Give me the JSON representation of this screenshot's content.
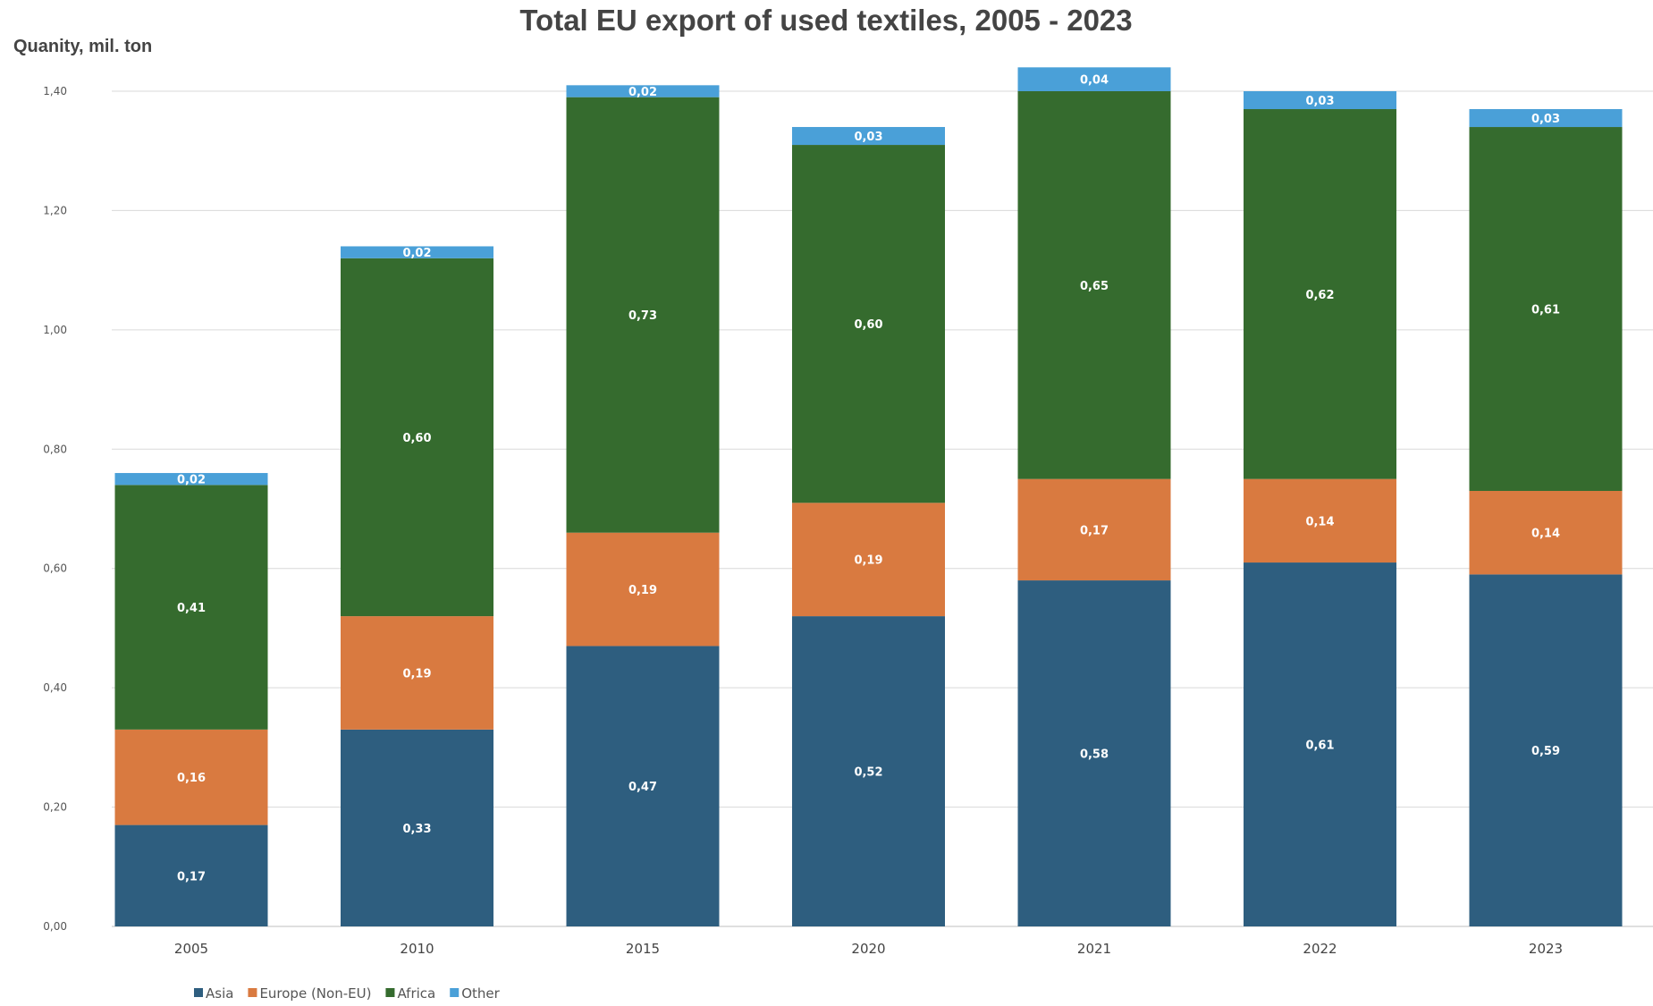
{
  "chart_data": {
    "type": "bar",
    "stacked": true,
    "title": "Total EU export of used textiles, 2005 - 2023",
    "ylabel": "Quanity, mil. ton",
    "xlabel": "",
    "ylim": [
      0,
      1.4
    ],
    "yticks": [
      "0,00",
      "0,20",
      "0,40",
      "0,60",
      "0,80",
      "1,00",
      "1,20",
      "1,40"
    ],
    "categories": [
      "2005",
      "2010",
      "2015",
      "2020",
      "2021",
      "2022",
      "2023"
    ],
    "grid": true,
    "legend_position": "bottom-left",
    "series": [
      {
        "name": "Asia",
        "color": "#2e5e7f",
        "values": [
          0.17,
          0.33,
          0.47,
          0.52,
          0.58,
          0.61,
          0.59
        ],
        "labels": [
          "0,17",
          "0,33",
          "0,47",
          "0,52",
          "0,58",
          "0,61",
          "0,59"
        ]
      },
      {
        "name": "Europe (Non-EU)",
        "color": "#d97a40",
        "values": [
          0.16,
          0.19,
          0.19,
          0.19,
          0.17,
          0.14,
          0.14
        ],
        "labels": [
          "0,16",
          "0,19",
          "0,19",
          "0,19",
          "0,17",
          "0,14",
          "0,14"
        ]
      },
      {
        "name": "Africa",
        "color": "#356b2e",
        "values": [
          0.41,
          0.6,
          0.73,
          0.6,
          0.65,
          0.62,
          0.61
        ],
        "labels": [
          "0,41",
          "0,60",
          "0,73",
          "0,60",
          "0,65",
          "0,62",
          "0,61"
        ]
      },
      {
        "name": "Other",
        "color": "#4aa0d8",
        "values": [
          0.02,
          0.02,
          0.02,
          0.03,
          0.04,
          0.03,
          0.03
        ],
        "labels": [
          "0,02",
          "0,02",
          "0,02",
          "0,03",
          "0,04",
          "0,03",
          "0,03"
        ]
      }
    ]
  }
}
